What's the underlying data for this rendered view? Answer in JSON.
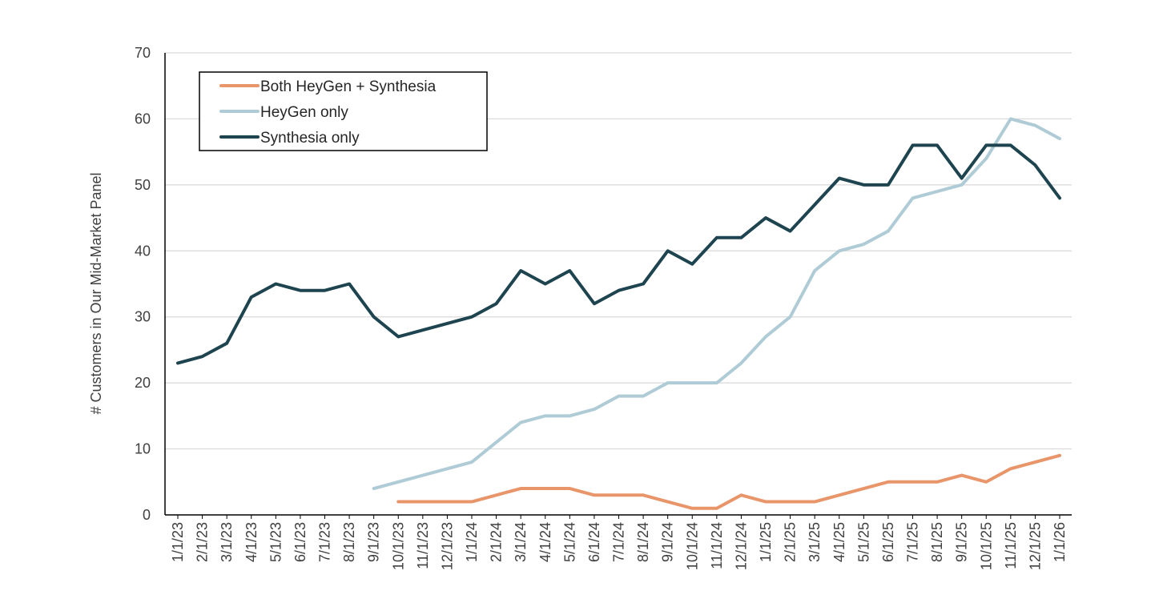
{
  "chart_data": {
    "type": "line",
    "ylabel": "# Customers in Our Mid-Market Panel",
    "xlabel": "",
    "ylim": [
      0,
      70
    ],
    "yticks": [
      0,
      10,
      20,
      30,
      40,
      50,
      60,
      70
    ],
    "grid": "horizontal",
    "legend_position": "top-left",
    "categories": [
      "1/1/23",
      "2/1/23",
      "3/1/23",
      "4/1/23",
      "5/1/23",
      "6/1/23",
      "7/1/23",
      "8/1/23",
      "9/1/23",
      "10/1/23",
      "11/1/23",
      "12/1/23",
      "1/1/24",
      "2/1/24",
      "3/1/24",
      "4/1/24",
      "5/1/24",
      "6/1/24",
      "7/1/24",
      "8/1/24",
      "9/1/24",
      "10/1/24",
      "11/1/24",
      "12/1/24",
      "1/1/25",
      "2/1/25",
      "3/1/25",
      "4/1/25",
      "5/1/25",
      "6/1/25",
      "7/1/25",
      "8/1/25",
      "9/1/25",
      "10/1/25",
      "11/1/25",
      "12/1/25",
      "1/1/26"
    ],
    "series": [
      {
        "name": "Both HeyGen + Synthesia",
        "color": "#E8956A",
        "values": [
          null,
          null,
          null,
          null,
          null,
          null,
          null,
          null,
          null,
          2,
          2,
          2,
          2,
          3,
          4,
          4,
          4,
          3,
          3,
          3,
          2,
          1,
          1,
          3,
          2,
          2,
          2,
          3,
          4,
          5,
          5,
          5,
          6,
          5,
          7,
          8,
          9
        ]
      },
      {
        "name": "HeyGen only",
        "color": "#AFCCD6",
        "values": [
          null,
          null,
          null,
          null,
          null,
          null,
          null,
          null,
          4,
          5,
          6,
          7,
          8,
          11,
          14,
          15,
          15,
          16,
          18,
          18,
          20,
          20,
          20,
          23,
          27,
          30,
          37,
          40,
          41,
          43,
          48,
          49,
          50,
          54,
          60,
          59,
          57
        ]
      },
      {
        "name": "Synthesia only",
        "color": "#1E4450",
        "values": [
          23,
          24,
          26,
          33,
          35,
          34,
          34,
          35,
          30,
          27,
          28,
          29,
          30,
          32,
          37,
          35,
          37,
          32,
          34,
          35,
          40,
          38,
          42,
          42,
          45,
          43,
          47,
          51,
          50,
          50,
          56,
          56,
          51,
          56,
          56,
          53,
          48
        ]
      }
    ]
  }
}
